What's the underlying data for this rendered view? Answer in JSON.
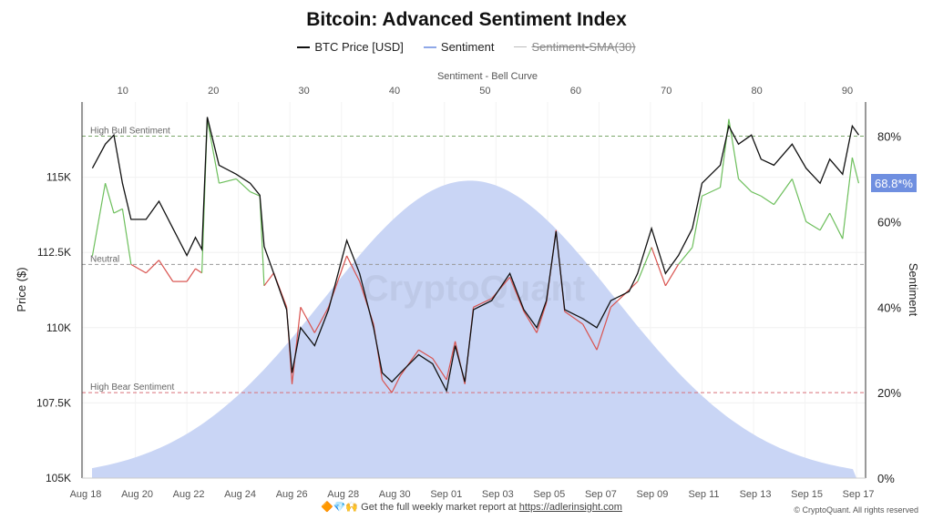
{
  "chart_data": {
    "type": "line",
    "title": "Bitcoin: Advanced Sentiment Index",
    "legend": {
      "placement": "top",
      "entries": [
        {
          "name": "BTC Price [USD]",
          "color": "#111111",
          "active": true
        },
        {
          "name": "Sentiment",
          "color": "#8fa8e8",
          "active": true
        },
        {
          "name": "Sentiment-SMA(30)",
          "color": "#999999",
          "active": false
        }
      ]
    },
    "top_axis": {
      "label": "Sentiment - Bell Curve",
      "ticks": [
        "10",
        "20",
        "30",
        "40",
        "50",
        "60",
        "70",
        "80",
        "90"
      ],
      "range": [
        6.6,
        91
      ]
    },
    "ylabel_left": "Price ($)",
    "ylabel_right": "Sentiment",
    "left_ticks": [
      "105K",
      "107.5K",
      "110K",
      "112.5K",
      "115K"
    ],
    "left_range": [
      105000,
      117500
    ],
    "right_ticks": [
      "0%",
      "20%",
      "40%",
      "60%",
      "80%"
    ],
    "right_range": [
      0,
      88
    ],
    "x_ticks": [
      "Aug 18",
      "Aug 20",
      "Aug 22",
      "Aug 24",
      "Aug 26",
      "Aug 28",
      "Aug 30",
      "Sep 01",
      "Sep 03",
      "Sep 05",
      "Sep 07",
      "Sep 09",
      "Sep 11",
      "Sep 13",
      "Sep 15",
      "Sep 17"
    ],
    "x_range": [
      "Aug 18 00:00",
      "Sep 17 12:00"
    ],
    "grid": true,
    "reference_lines": [
      {
        "label": "High Bull Sentiment",
        "value": 80,
        "color": "#7aa76a"
      },
      {
        "label": "Neutral",
        "value": 50,
        "color": "#999999"
      },
      {
        "label": "High Bear Sentiment",
        "value": 20,
        "color": "#d9707a"
      }
    ],
    "colors": {
      "bull": "#6dbf5c",
      "bear": "#d9534f",
      "bell": "#c9d5f5",
      "badge": "#6f8fe0"
    },
    "latest_badge": "68.8*%",
    "bell_curve": {
      "mean": 48.3,
      "std": 16,
      "peak_pct": 69.6
    },
    "watermark": "CryptoQuant",
    "x": [
      "Aug 18 08:00",
      "Aug 18 20:00",
      "Aug 19 04:00",
      "Aug 19 12:00",
      "Aug 19 20:00",
      "Aug 20 10:00",
      "Aug 20 22:00",
      "Aug 21 11:00",
      "Aug 22 00:00",
      "Aug 22 08:00",
      "Aug 22 14:00",
      "Aug 22 19:00",
      "Aug 23 06:00",
      "Aug 23 22:00",
      "Aug 24 11:00",
      "Aug 24 20:00",
      "Aug 25 00:00",
      "Aug 25 09:00",
      "Aug 25 21:00",
      "Aug 26 02:00",
      "Aug 26 10:00",
      "Aug 26 23:00",
      "Aug 27 12:00",
      "Aug 28 05:00",
      "Aug 28 17:00",
      "Aug 29 06:00",
      "Aug 29 14:00",
      "Aug 29 23:00",
      "Aug 30 07:00",
      "Aug 31 00:00",
      "Aug 31 13:00",
      "Sep 01 02:00",
      "Sep 01 10:00",
      "Sep 01 19:00",
      "Sep 02 03:00",
      "Sep 02 20:00",
      "Sep 03 13:00",
      "Sep 04 02:00",
      "Sep 04 14:00",
      "Sep 04 23:00",
      "Sep 05 08:00",
      "Sep 05 16:00",
      "Sep 06 09:00",
      "Sep 06 22:00",
      "Sep 07 11:00",
      "Sep 08 04:00",
      "Sep 08 12:00",
      "Sep 09 01:00",
      "Sep 09 14:00",
      "Sep 10 02:00",
      "Sep 10 15:00",
      "Sep 11 00:00",
      "Sep 11 17:00",
      "Sep 12 01:00",
      "Sep 12 10:00",
      "Sep 12 22:00",
      "Sep 13 07:00",
      "Sep 13 19:00",
      "Sep 14 12:00",
      "Sep 15 01:00",
      "Sep 15 14:00",
      "Sep 15 23:00",
      "Sep 16 11:00",
      "Sep 16 20:00",
      "Sep 17 02:00"
    ],
    "series": [
      {
        "name": "BTC Price [USD]",
        "values": [
          115300,
          116100,
          116400,
          114800,
          113600,
          113600,
          114200,
          113300,
          112400,
          113000,
          112600,
          117000,
          115400,
          115100,
          114800,
          114400,
          112700,
          111800,
          110600,
          108500,
          110000,
          109400,
          110600,
          112900,
          111800,
          110000,
          108500,
          108200,
          108500,
          109100,
          108800,
          107900,
          109400,
          108200,
          110600,
          110900,
          111800,
          110600,
          110000,
          110900,
          113200,
          110600,
          110300,
          110000,
          110900,
          111200,
          111800,
          113300,
          111800,
          112400,
          113300,
          114800,
          115400,
          116700,
          116100,
          116400,
          115600,
          115400,
          116100,
          115300,
          114800,
          115600,
          115100,
          116700,
          116400
        ]
      },
      {
        "name": "Sentiment",
        "values": [
          52,
          69,
          62,
          63,
          50,
          48,
          51,
          46,
          46,
          49,
          48,
          84,
          69,
          70,
          67,
          66,
          45,
          48,
          40,
          22,
          40,
          34,
          40,
          52,
          46,
          36,
          23,
          20,
          24,
          30,
          28,
          23,
          32,
          22,
          40,
          42,
          47,
          39,
          34,
          41,
          58,
          39,
          36,
          30,
          40,
          44,
          46,
          54,
          45,
          50,
          54,
          66,
          68,
          84,
          70,
          67,
          66,
          64,
          70,
          60,
          58,
          62,
          56,
          75,
          69
        ]
      }
    ]
  },
  "footer": {
    "text": "Get the full weekly market report at",
    "link": "https://adlerinsight.com",
    "emojis": "🔶💎🙌",
    "copyright": "© CryptoQuant. All rights reserved"
  }
}
